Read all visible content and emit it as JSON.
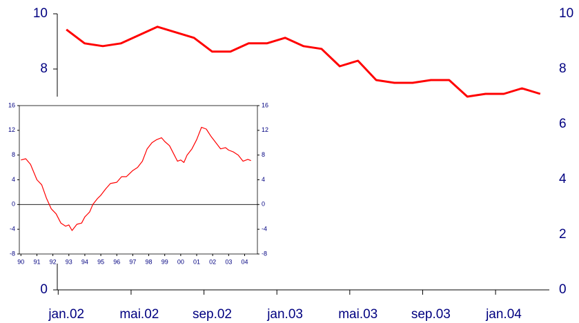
{
  "chart_data": [
    {
      "type": "line",
      "categories": [
        "jan.02",
        null,
        null,
        null,
        "mai.02",
        null,
        null,
        null,
        "sep.02",
        null,
        null,
        null,
        "jan.03",
        null,
        null,
        null,
        "mai.03",
        null,
        null,
        null,
        "sep.03",
        null,
        null,
        null,
        "jan.04",
        null,
        null
      ],
      "series": [
        {
          "color": "#ff0000",
          "values": [
            9.43,
            8.93,
            8.83,
            8.93,
            9.23,
            9.53,
            9.33,
            9.13,
            8.63,
            8.63,
            8.93,
            8.93,
            9.13,
            8.83,
            8.73,
            8.1,
            8.3,
            7.6,
            7.5,
            7.5,
            7.6,
            7.6,
            7.0,
            7.1,
            7.1,
            7.3,
            7.1
          ]
        }
      ],
      "ylim": [
        0,
        10
      ],
      "yticks": [
        0,
        2,
        4,
        6,
        8,
        10
      ],
      "y2lim": [
        0,
        10
      ],
      "y2ticks": [
        0,
        2,
        4,
        6,
        8,
        10
      ]
    },
    {
      "type": "line",
      "x": [
        1990.0,
        1990.3,
        1990.6,
        1991.0,
        1991.3,
        1991.6,
        1991.9,
        1992.2,
        1992.5,
        1992.8,
        1993.0,
        1993.2,
        1993.5,
        1993.8,
        1994.0,
        1994.3,
        1994.5,
        1994.8,
        1995.0,
        1995.3,
        1995.6,
        1996.0,
        1996.3,
        1996.6,
        1997.0,
        1997.3,
        1997.6,
        1997.9,
        1998.2,
        1998.5,
        1998.8,
        1999.0,
        1999.3,
        1999.6,
        1999.8,
        2000.0,
        2000.2,
        2000.4,
        2000.7,
        2001.0,
        2001.3,
        2001.6,
        2001.9,
        2002.2,
        2002.5,
        2002.8,
        2003.0,
        2003.3,
        2003.6,
        2003.9,
        2004.2,
        2004.4
      ],
      "series": [
        {
          "color": "#ff0000",
          "values": [
            7.2,
            7.4,
            6.5,
            4.0,
            3.2,
            1.0,
            -0.7,
            -1.5,
            -3.0,
            -3.5,
            -3.3,
            -4.2,
            -3.2,
            -3.0,
            -2.0,
            -1.2,
            0,
            1.0,
            1.5,
            2.5,
            3.4,
            3.6,
            4.5,
            4.5,
            5.5,
            6.0,
            7.0,
            9.0,
            10.0,
            10.5,
            10.8,
            10.2,
            9.5,
            8.0,
            7.0,
            7.2,
            6.8,
            8.0,
            9.0,
            10.5,
            12.5,
            12.2,
            11.0,
            10.0,
            9.0,
            9.2,
            8.8,
            8.5,
            8.0,
            7.0,
            7.3,
            7.1
          ]
        }
      ],
      "xlim": [
        1989.9,
        2004.8
      ],
      "xticks": [
        {
          "value": 1990,
          "label": "90"
        },
        {
          "value": 1991,
          "label": "91"
        },
        {
          "value": 1992,
          "label": "92"
        },
        {
          "value": 1993,
          "label": "93"
        },
        {
          "value": 1994,
          "label": "94"
        },
        {
          "value": 1995,
          "label": "95"
        },
        {
          "value": 1996,
          "label": "96"
        },
        {
          "value": 1997,
          "label": "97"
        },
        {
          "value": 1998,
          "label": "98"
        },
        {
          "value": 1999,
          "label": "99"
        },
        {
          "value": 2000,
          "label": "00"
        },
        {
          "value": 2001,
          "label": "01"
        },
        {
          "value": 2002,
          "label": "02"
        },
        {
          "value": 2003,
          "label": "03"
        },
        {
          "value": 2004,
          "label": "04"
        }
      ],
      "ylim": [
        -8,
        16
      ],
      "yticks": [
        -8,
        -4,
        0,
        4,
        8,
        12,
        16
      ],
      "y2lim": [
        -8,
        16
      ],
      "y2ticks": [
        -8,
        -4,
        0,
        4,
        8,
        12,
        16
      ]
    }
  ]
}
